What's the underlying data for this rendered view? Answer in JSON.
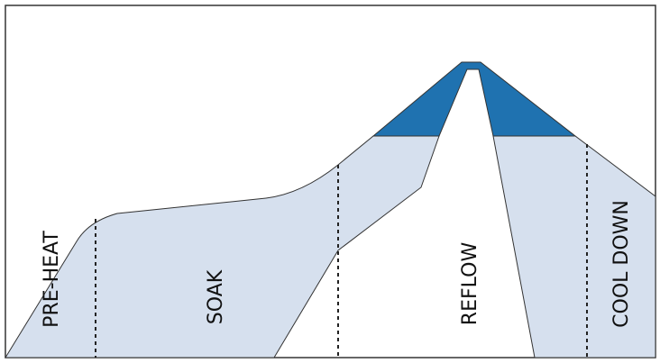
{
  "phases": [
    {
      "label": "PRE-HEAT"
    },
    {
      "label": "SOAK"
    },
    {
      "label": "REFLOW"
    },
    {
      "label": "COOL DOWN"
    }
  ]
}
